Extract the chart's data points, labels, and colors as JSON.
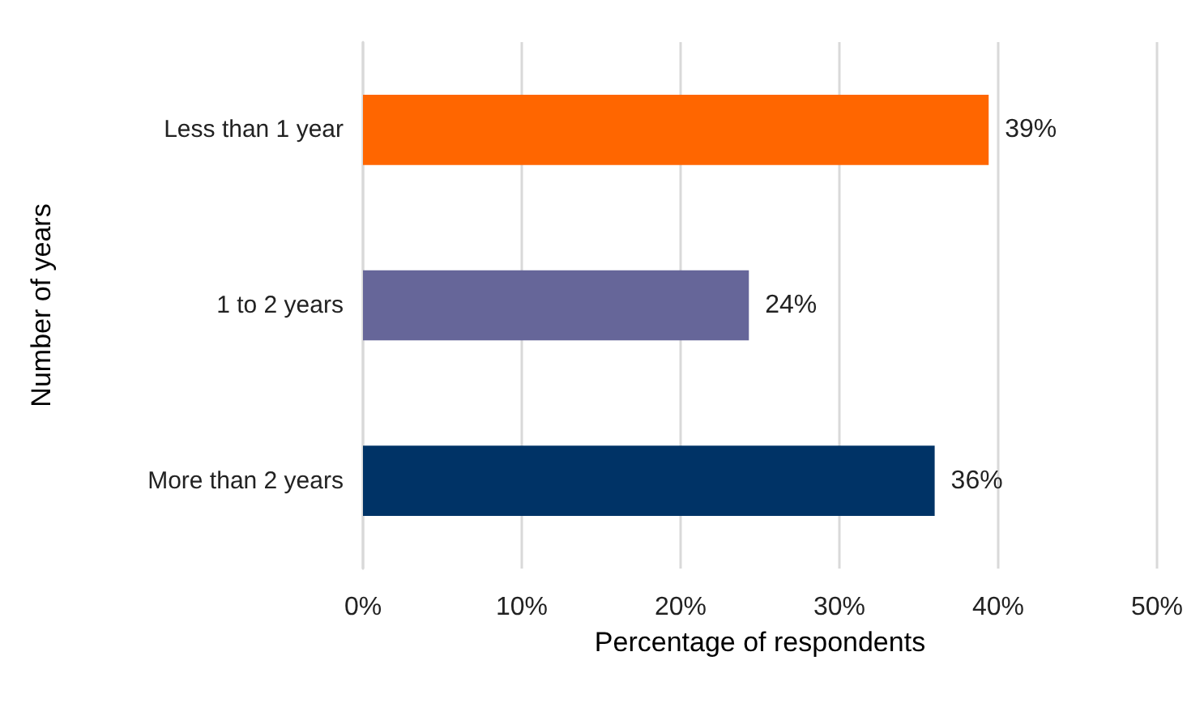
{
  "chart_data": {
    "type": "bar",
    "orientation": "horizontal",
    "xlabel": "Percentage of respondents",
    "ylabel": "Number of years",
    "categories": [
      "Less than 1 year",
      "1 to 2 years",
      "More than 2 years"
    ],
    "values": [
      39.4,
      24.3,
      36
    ],
    "colors": [
      "#ff6600",
      "#666699",
      "#003366"
    ],
    "value_labels": [
      "39%",
      "24%",
      "36%"
    ],
    "xlim": [
      0,
      50
    ],
    "xticks": [
      {
        "value": 0,
        "label": "0%"
      },
      {
        "value": 10,
        "label": "10%"
      },
      {
        "value": 20,
        "label": "20%"
      },
      {
        "value": 30,
        "label": "30%"
      },
      {
        "value": 40,
        "label": "40%"
      },
      {
        "value": 50,
        "label": "50%"
      }
    ],
    "grid": "x"
  }
}
